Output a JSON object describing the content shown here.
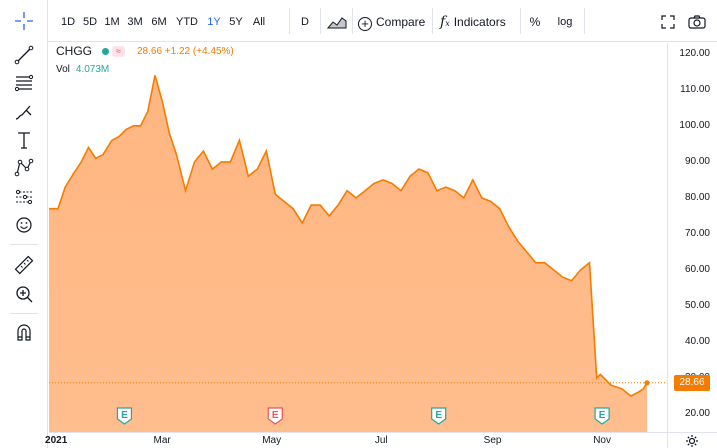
{
  "toolbar": {
    "intervals": [
      "1D",
      "5D",
      "1M",
      "3M",
      "6M",
      "YTD",
      "1Y",
      "5Y",
      "All"
    ],
    "active_interval": "1Y",
    "resolution": "D",
    "compare_label": "Compare",
    "indicators_label": "Indicators",
    "percent_label": "%",
    "log_label": "log"
  },
  "legend": {
    "symbol": "CHGG",
    "price_text": "28.66 +1.22 (+4.45%)",
    "volume_label": "Vol",
    "volume_value": "4.073M",
    "approx_glyph": "≈"
  },
  "price_scale": {
    "ticks": [
      "120.00",
      "110.00",
      "100.00",
      "90.00",
      "80.00",
      "70.00",
      "60.00",
      "50.00",
      "40.00",
      "30.00",
      "20.00"
    ],
    "last_price": "28.66"
  },
  "time_scale": {
    "ticks": [
      {
        "label": "2021",
        "bold": true
      },
      {
        "label": "Mar",
        "bold": false
      },
      {
        "label": "May",
        "bold": false
      },
      {
        "label": "Jul",
        "bold": false
      },
      {
        "label": "Sep",
        "bold": false
      },
      {
        "label": "Nov",
        "bold": false
      }
    ]
  },
  "earnings_markers": [
    {
      "glyph": "E",
      "kind": "reported",
      "color": "#26a69a",
      "date": "2021-02-08"
    },
    {
      "glyph": "E",
      "kind": "missed",
      "color": "#ef5350",
      "date": "2021-05-03"
    },
    {
      "glyph": "E",
      "kind": "reported",
      "color": "#26a69a",
      "date": "2021-08-02"
    },
    {
      "glyph": "E",
      "kind": "reported",
      "color": "#26a69a",
      "date": "2021-11-01"
    }
  ],
  "colors": {
    "series_line": "#f57c00",
    "series_fill": "#ffb27a",
    "up": "#26a69a",
    "down": "#ef5350",
    "accent": "#2962ff"
  },
  "chart_data": {
    "type": "area",
    "symbol": "CHGG",
    "x_start": "2020-12-28",
    "x_end": "2021-11-26",
    "ylim": [
      15,
      123
    ],
    "last_value": 28.66,
    "grid": false,
    "x": [
      "2020-12-28",
      "2021-01-02",
      "2021-01-06",
      "2021-01-11",
      "2021-01-15",
      "2021-01-19",
      "2021-01-23",
      "2021-01-27",
      "2021-02-01",
      "2021-02-05",
      "2021-02-09",
      "2021-02-13",
      "2021-02-17",
      "2021-02-21",
      "2021-02-25",
      "2021-03-01",
      "2021-03-05",
      "2021-03-09",
      "2021-03-14",
      "2021-03-19",
      "2021-03-24",
      "2021-03-29",
      "2021-04-03",
      "2021-04-08",
      "2021-04-13",
      "2021-04-18",
      "2021-04-23",
      "2021-04-28",
      "2021-05-03",
      "2021-05-08",
      "2021-05-13",
      "2021-05-18",
      "2021-05-23",
      "2021-05-28",
      "2021-06-02",
      "2021-06-07",
      "2021-06-12",
      "2021-06-17",
      "2021-06-22",
      "2021-06-27",
      "2021-07-02",
      "2021-07-07",
      "2021-07-12",
      "2021-07-17",
      "2021-07-22",
      "2021-07-27",
      "2021-08-01",
      "2021-08-06",
      "2021-08-11",
      "2021-08-16",
      "2021-08-21",
      "2021-08-26",
      "2021-08-31",
      "2021-09-05",
      "2021-09-10",
      "2021-09-15",
      "2021-09-20",
      "2021-09-25",
      "2021-09-30",
      "2021-10-05",
      "2021-10-10",
      "2021-10-15",
      "2021-10-20",
      "2021-10-25",
      "2021-10-29",
      "2021-10-31",
      "2021-11-02",
      "2021-11-06",
      "2021-11-12",
      "2021-11-17",
      "2021-11-21",
      "2021-11-24",
      "2021-11-26"
    ],
    "values": [
      77,
      77,
      83,
      87,
      90,
      94,
      91,
      92,
      96,
      97,
      99,
      100,
      100,
      104,
      114,
      107,
      98,
      92,
      82,
      90,
      93,
      88,
      90,
      90,
      96,
      86,
      88,
      93,
      81,
      79,
      77,
      73,
      78,
      78,
      75,
      78,
      82,
      80,
      82,
      84,
      85,
      84,
      82,
      86,
      88,
      87,
      82,
      83,
      82,
      80,
      85,
      80,
      79,
      77,
      72,
      68,
      65,
      62,
      62,
      60,
      58,
      57,
      60,
      62,
      30,
      31,
      30,
      28,
      27,
      25,
      26,
      27,
      28.66
    ]
  }
}
